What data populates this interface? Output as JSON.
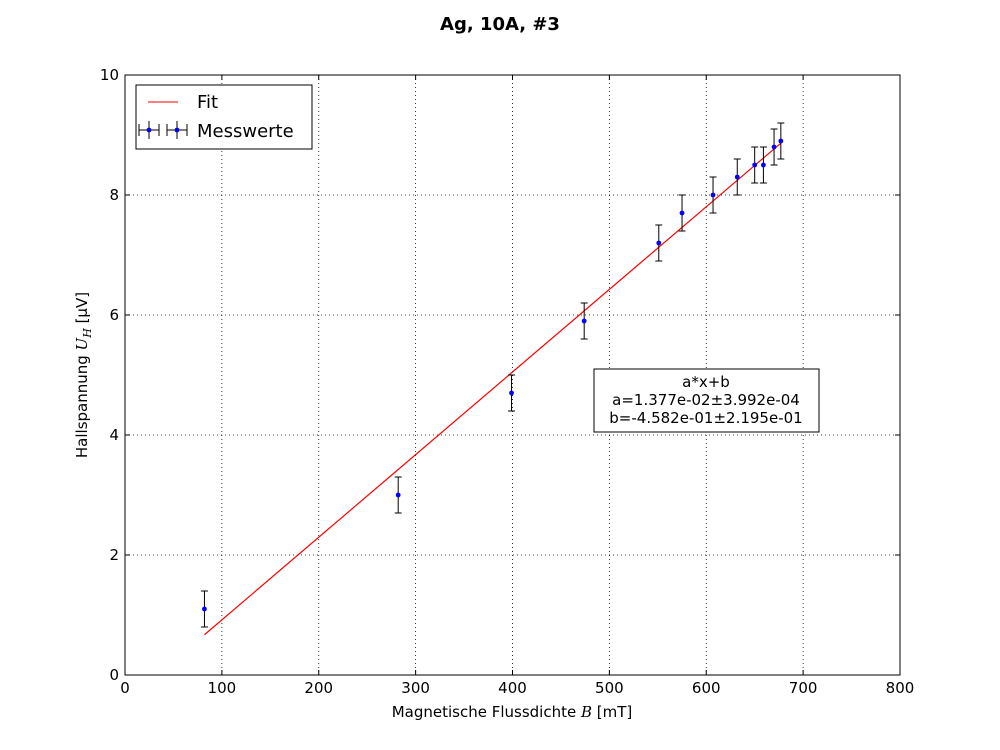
{
  "chart_data": {
    "type": "scatter",
    "title": "Ag, 10A, #3",
    "xlabel": {
      "prefix": "Magnetische Flussdichte ",
      "symbol": "B",
      "suffix": " [mT]"
    },
    "ylabel": {
      "prefix": "Hallspannung ",
      "symbol": "U",
      "sub": "H",
      "suffix": "  [μV]"
    },
    "xlim": [
      0,
      800
    ],
    "ylim": [
      0,
      10
    ],
    "xticks": [
      0,
      100,
      200,
      300,
      400,
      500,
      600,
      700,
      800
    ],
    "yticks": [
      0,
      2,
      4,
      6,
      8,
      10
    ],
    "grid": true,
    "legend": {
      "placement": "top-left",
      "entries": [
        "Fit",
        "Messwerte"
      ]
    },
    "series": [
      {
        "name": "Messwerte",
        "type": "errorbar",
        "color": "#0000ff",
        "errcolor": "#000000",
        "x": [
          82,
          282,
          399,
          474,
          551,
          575,
          607,
          632,
          650,
          659,
          670,
          677
        ],
        "y": [
          1.1,
          3.0,
          4.7,
          5.9,
          7.2,
          7.7,
          8.0,
          8.3,
          8.5,
          8.5,
          8.8,
          8.9
        ],
        "yerr": [
          0.3,
          0.3,
          0.3,
          0.3,
          0.3,
          0.3,
          0.3,
          0.3,
          0.3,
          0.3,
          0.3,
          0.3
        ]
      },
      {
        "name": "Fit",
        "type": "line",
        "color": "#ff0000",
        "x": [
          82,
          677
        ],
        "y": [
          0.671,
          8.864
        ]
      }
    ],
    "annotation": {
      "lines": [
        "a*x+b",
        "a=1.377e-02±3.992e-04",
        "b=-4.582e-01±2.195e-01"
      ],
      "placement": "right-center"
    }
  }
}
